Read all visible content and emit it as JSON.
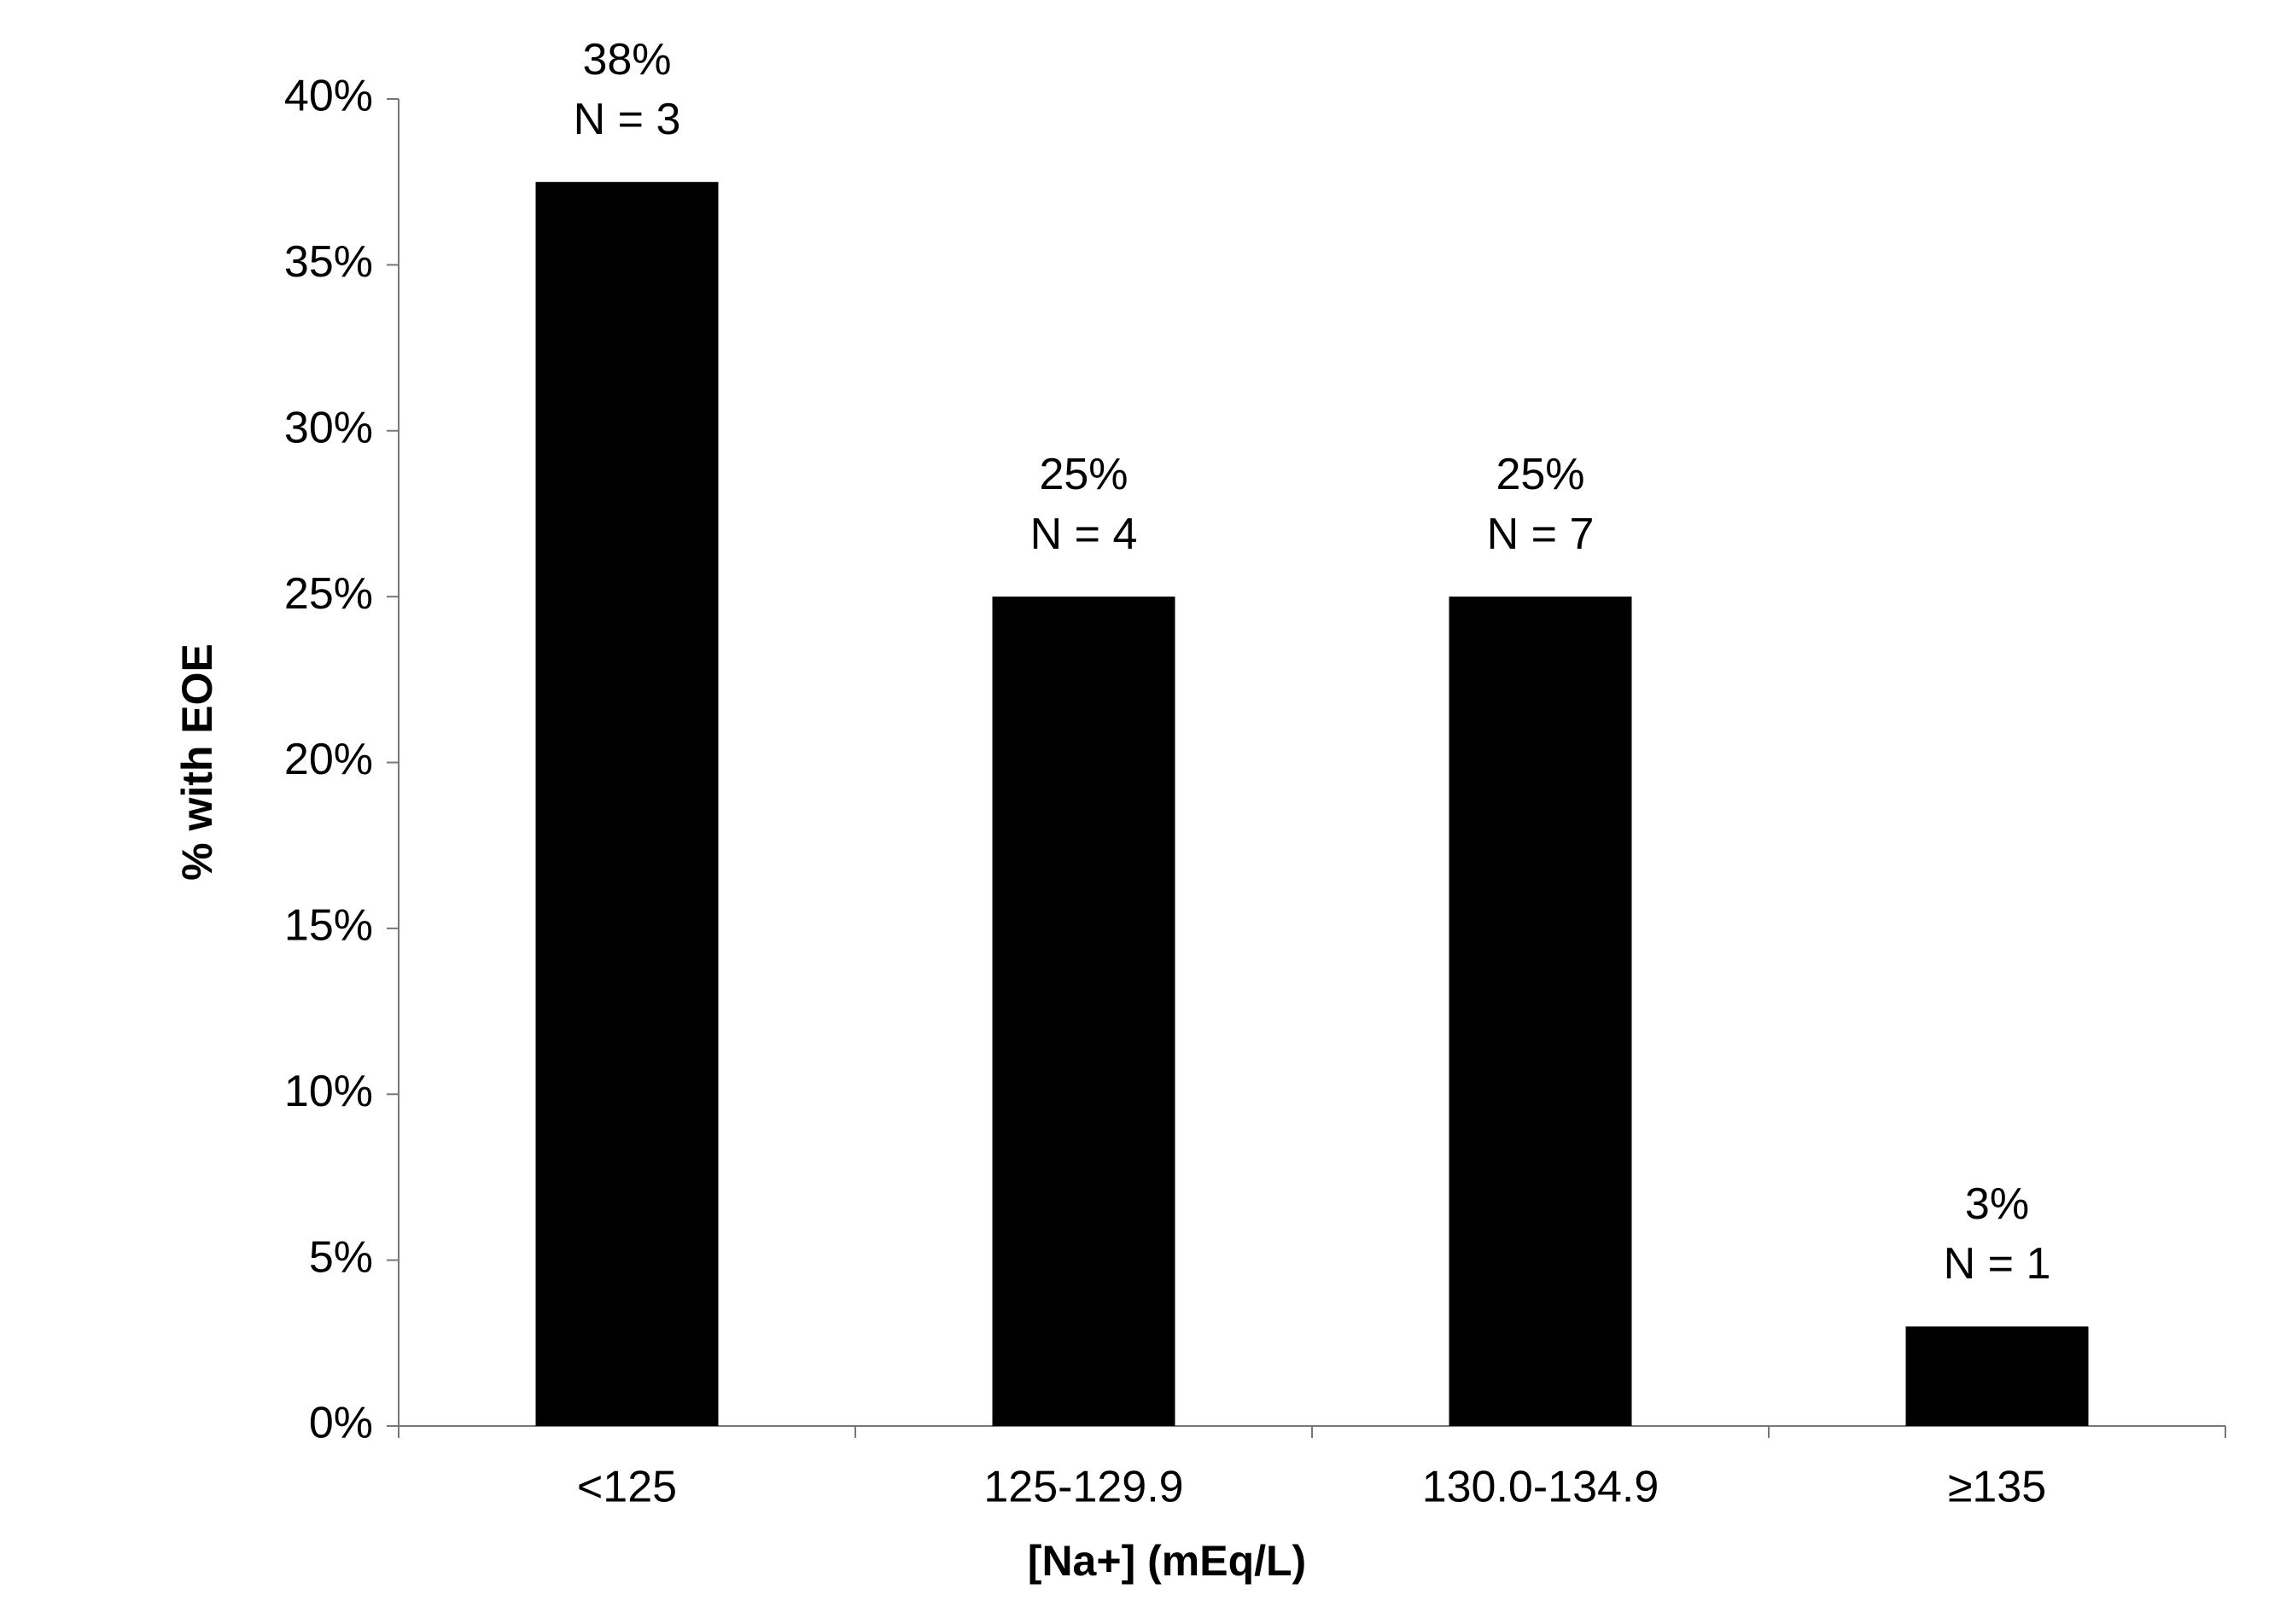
{
  "chart_data": {
    "type": "bar",
    "categories": [
      "<125",
      "125-129.9",
      "130.0-134.9",
      "≥135"
    ],
    "values": [
      37.5,
      25,
      25,
      3
    ],
    "value_labels": [
      "38%",
      "25%",
      "25%",
      "3%"
    ],
    "count_labels": [
      "N = 3",
      "N = 4",
      "N = 7",
      "N = 1"
    ],
    "color": "#000000",
    "x_label": "[Na+] (mEq/L)",
    "y_label": "% with EOE",
    "ylim": [
      0,
      40
    ],
    "yticks": [
      {
        "value": 0,
        "label": "0%"
      },
      {
        "value": 5,
        "label": "5%"
      },
      {
        "value": 10,
        "label": "10%"
      },
      {
        "value": 15,
        "label": "15%"
      },
      {
        "value": 20,
        "label": "20%"
      },
      {
        "value": 25,
        "label": "25%"
      },
      {
        "value": 30,
        "label": "30%"
      },
      {
        "value": 35,
        "label": "35%"
      },
      {
        "value": 40,
        "label": "40%"
      }
    ],
    "grid": false
  }
}
